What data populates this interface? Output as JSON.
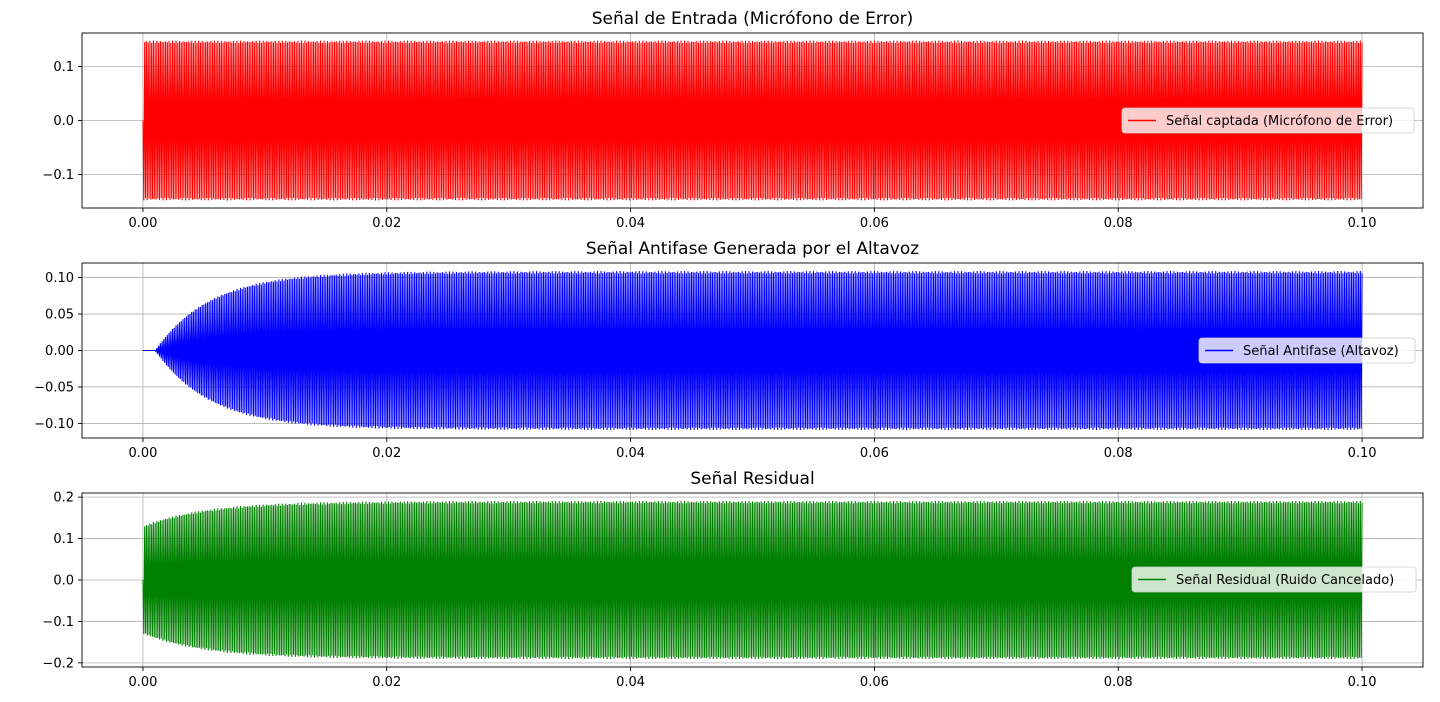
{
  "chart_data": [
    {
      "type": "line",
      "title": "Señal de Entrada (Micrófono de Error)",
      "xlabel": "",
      "ylabel": "",
      "xlim": [
        -0.005,
        0.105
      ],
      "ylim": [
        -0.162,
        0.162
      ],
      "xticks": [
        0.0,
        0.02,
        0.04,
        0.06,
        0.08,
        0.1
      ],
      "xtick_labels": [
        "0.00",
        "0.02",
        "0.04",
        "0.06",
        "0.08",
        "0.10"
      ],
      "yticks": [
        0.1,
        0.0,
        -0.1
      ],
      "ytick_labels": [
        "0.1",
        "0.0",
        "−0.1"
      ],
      "grid": true,
      "legend_position": "center-right",
      "series": [
        {
          "name": "Señal captada (Micrófono de Error)",
          "color": "#ff0000",
          "x_start": 0.0,
          "x_end": 0.1,
          "envelope": "constant",
          "amplitude": 0.148,
          "onset_delay": 0.0,
          "time_constant": 0.0
        }
      ]
    },
    {
      "type": "line",
      "title": "Señal Antifase Generada por el Altavoz",
      "xlabel": "",
      "ylabel": "",
      "xlim": [
        -0.005,
        0.105
      ],
      "ylim": [
        -0.12,
        0.12
      ],
      "xticks": [
        0.0,
        0.02,
        0.04,
        0.06,
        0.08,
        0.1
      ],
      "xtick_labels": [
        "0.00",
        "0.02",
        "0.04",
        "0.06",
        "0.08",
        "0.10"
      ],
      "yticks": [
        0.1,
        0.05,
        0.0,
        -0.05,
        -0.1
      ],
      "ytick_labels": [
        "0.10",
        "0.05",
        "0.00",
        "−0.05",
        "−0.10"
      ],
      "grid": true,
      "legend_position": "center-right",
      "series": [
        {
          "name": "Señal Antifase (Altavoz)",
          "color": "#0000ff",
          "x_start": 0.0,
          "x_end": 0.1,
          "envelope": "exponential-rise",
          "amplitude": 0.109,
          "onset_delay": 0.001,
          "time_constant": 0.0045
        }
      ]
    },
    {
      "type": "line",
      "title": "Señal Residual",
      "xlabel": "",
      "ylabel": "",
      "xlim": [
        -0.005,
        0.105
      ],
      "ylim": [
        -0.21,
        0.21
      ],
      "xticks": [
        0.0,
        0.02,
        0.04,
        0.06,
        0.08,
        0.1
      ],
      "xtick_labels": [
        "0.00",
        "0.02",
        "0.04",
        "0.06",
        "0.08",
        "0.10"
      ],
      "yticks": [
        0.2,
        0.1,
        0.0,
        -0.1,
        -0.2
      ],
      "ytick_labels": [
        "0.2",
        "0.1",
        "0.0",
        "−0.1",
        "−0.2"
      ],
      "grid": true,
      "legend_position": "center-right",
      "series": [
        {
          "name": "Señal Residual (Ruido Cancelado)",
          "color": "#008000",
          "x_start": 0.0,
          "x_end": 0.1,
          "envelope": "exponential-rise",
          "amplitude": 0.191,
          "start_amplitude": 0.13,
          "onset_delay": 0.0,
          "time_constant": 0.005
        }
      ]
    }
  ]
}
